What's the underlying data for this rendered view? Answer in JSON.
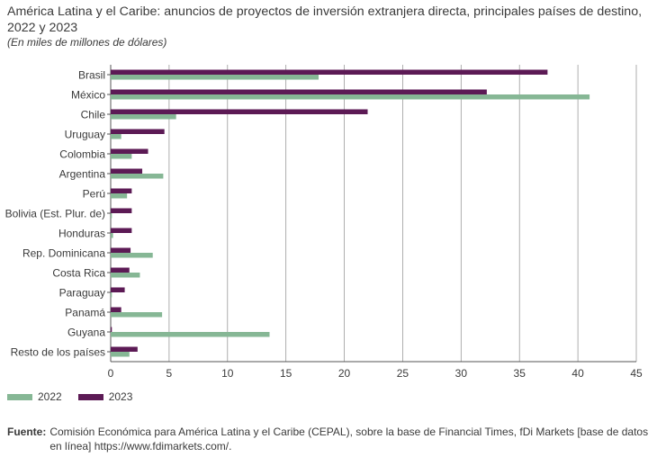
{
  "header": {
    "title": "América Latina y el Caribe: anuncios de proyectos de inversión extranjera directa, principales países de destino, 2022 y 2023",
    "subtitle": "(En miles de millones de dólares)"
  },
  "legend": {
    "items": [
      {
        "label": "2022",
        "color": "#86b795"
      },
      {
        "label": "2023",
        "color": "#5c1a55"
      }
    ]
  },
  "source": {
    "label": "Fuente",
    "text": "Comisión Económica para América Latina y el Caribe (CEPAL), sobre la base de Financial Times, fDi Markets [base de datos en línea] https://www.fdimarkets.com/."
  },
  "chart_data": {
    "type": "bar",
    "orientation": "horizontal",
    "categories": [
      "Brasil",
      "México",
      "Chile",
      "Uruguay",
      "Colombia",
      "Argentina",
      "Perú",
      "Bolivia (Est. Plur. de)",
      "Honduras",
      "Rep. Dominicana",
      "Costa Rica",
      "Paraguay",
      "Panamá",
      "Guyana",
      "Resto de los países"
    ],
    "series": [
      {
        "name": "2022",
        "color": "#86b795",
        "values": [
          17.8,
          41.0,
          5.6,
          0.9,
          1.8,
          4.5,
          1.4,
          0.1,
          0.2,
          3.6,
          2.5,
          0.1,
          4.4,
          13.6,
          1.6
        ]
      },
      {
        "name": "2023",
        "color": "#5c1a55",
        "values": [
          37.4,
          32.2,
          22.0,
          4.6,
          3.2,
          2.7,
          1.8,
          1.8,
          1.8,
          1.7,
          1.6,
          1.2,
          0.9,
          0.1,
          2.3
        ]
      }
    ],
    "xlim": [
      0,
      45
    ],
    "xticks": [
      0,
      5,
      10,
      15,
      20,
      25,
      30,
      35,
      40,
      45
    ],
    "grid": true,
    "legend_position": "bottom-left"
  }
}
